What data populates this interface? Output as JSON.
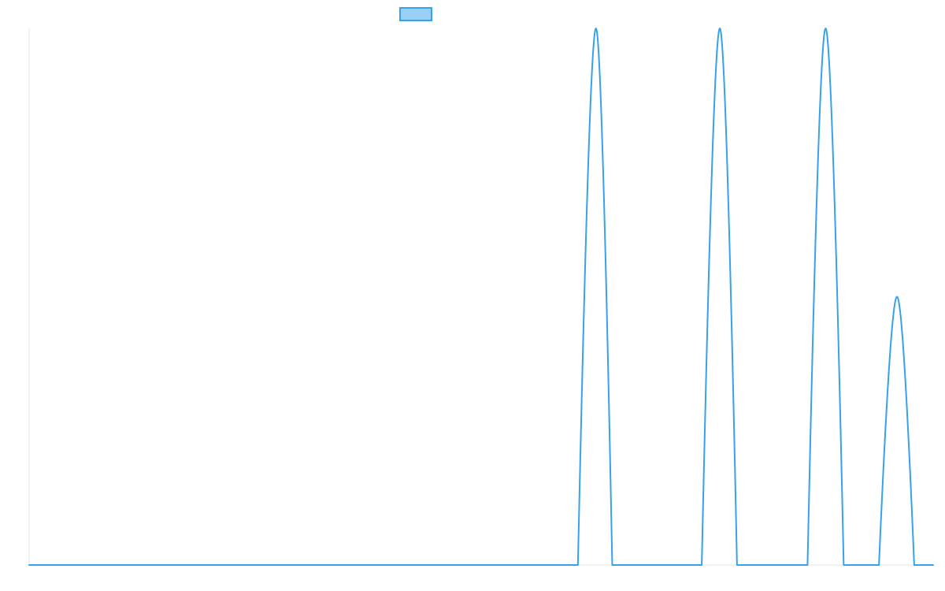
{
  "chart_data": {
    "type": "line",
    "title": "",
    "xlabel": "",
    "ylabel": "",
    "legend": {
      "placement": "top-center",
      "show": true
    },
    "grid": false,
    "xlim": [
      0,
      1
    ],
    "ylim": [
      0,
      1
    ],
    "colors": {
      "series_stroke": "#36a2eb",
      "series_fill": "#9ad0f5",
      "axis": "#e6e6e6"
    },
    "series": [
      {
        "x": [
          0,
          0.607,
          0.627,
          0.645,
          0.744,
          0.764,
          0.783,
          0.861,
          0.881,
          0.901,
          0.94,
          0.96,
          0.979,
          1
        ],
        "y": [
          0,
          0,
          1,
          0,
          0,
          1,
          0,
          0,
          1,
          0,
          0,
          0.5,
          0,
          0
        ]
      }
    ]
  }
}
